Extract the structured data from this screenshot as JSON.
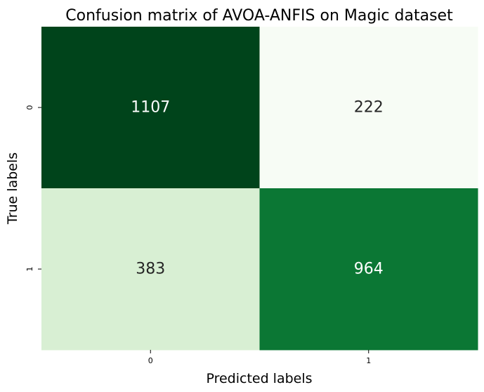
{
  "chart_data": {
    "type": "heatmap",
    "title": "Confusion matrix of AVOA-ANFIS on Magic dataset",
    "xlabel": "Predicted labels",
    "ylabel": "True labels",
    "x_categories": [
      "0",
      "1"
    ],
    "y_categories": [
      "0",
      "1"
    ],
    "values": [
      [
        1107,
        222
      ],
      [
        383,
        964
      ]
    ],
    "colormap": "Greens",
    "color_range": [
      222,
      1107
    ],
    "cell_colors": [
      [
        "#00441b",
        "#f7fcf5"
      ],
      [
        "#d8efd3",
        "#0b7734"
      ]
    ],
    "annotation_text_colors": [
      [
        "#ffffff",
        "#262626"
      ],
      [
        "#262626",
        "#ffffff"
      ]
    ],
    "colorbar": false
  }
}
